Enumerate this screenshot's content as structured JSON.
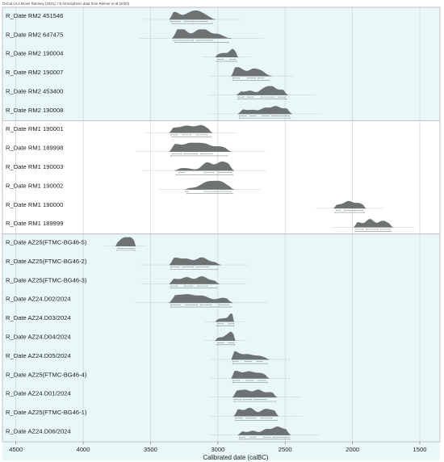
{
  "header": {
    "text": "OxCal v4.4 Bronk Ramsey (2021); r:5 Atmospheric data from Reimer et al (2020)"
  },
  "chart_data": {
    "type": "area",
    "title": "",
    "xlabel": "Calibrated date (calBC)",
    "ylabel": "",
    "xlim": [
      4600,
      1350
    ],
    "x_reversed": true,
    "xticks": [
      4500,
      4000,
      3500,
      3000,
      2500,
      2000,
      1500
    ],
    "grid": true,
    "groups": [
      {
        "name": "group-1",
        "from": 0,
        "to": 5,
        "fill": "#e9f7f8"
      },
      {
        "name": "group-2",
        "from": 6,
        "to": 11,
        "fill": "#ffffff"
      },
      {
        "name": "group-3",
        "from": 12,
        "to": 23,
        "fill": "#e9f7f8"
      }
    ],
    "series": [
      {
        "name": "R_Date RM2 451546",
        "range": [
          3360,
          3020
        ],
        "peaks": [
          [
            3320,
            0.9
          ],
          [
            3220,
            0.6
          ],
          [
            3160,
            0.85
          ],
          [
            3100,
            0.5
          ]
        ],
        "bands": [
          [
            3350,
            3280
          ],
          [
            3250,
            3180
          ],
          [
            3170,
            3080
          ],
          [
            3340,
            3040
          ]
        ]
      },
      {
        "name": "R_Date RM2 647475",
        "range": [
          3340,
          2900
        ],
        "peaks": [
          [
            3310,
            0.6
          ],
          [
            3260,
            1.0
          ],
          [
            3150,
            0.8
          ],
          [
            3090,
            0.85
          ],
          [
            3000,
            0.5
          ]
        ],
        "bands": [
          [
            3330,
            3280
          ],
          [
            3270,
            3180
          ],
          [
            3160,
            3040
          ],
          [
            3320,
            2920
          ]
        ]
      },
      {
        "name": "R_Date RM2 190004",
        "range": [
          3020,
          2850
        ],
        "peaks": [
          [
            2990,
            0.3
          ],
          [
            2950,
            0.4
          ],
          [
            2890,
            1.0
          ]
        ],
        "bands": [
          [
            3000,
            2960
          ],
          [
            2910,
            2870
          ],
          [
            3010,
            2860
          ]
        ]
      },
      {
        "name": "R_Date RM2 190007",
        "range": [
          2900,
          2600
        ],
        "peaks": [
          [
            2870,
            0.9
          ],
          [
            2820,
            0.6
          ],
          [
            2740,
            0.8
          ],
          [
            2680,
            0.6
          ]
        ],
        "bands": [
          [
            2890,
            2840
          ],
          [
            2780,
            2720
          ],
          [
            2700,
            2660
          ],
          [
            2890,
            2620
          ]
        ]
      },
      {
        "name": "R_Date RM2 453400",
        "range": [
          2860,
          2480
        ],
        "peaks": [
          [
            2840,
            0.4
          ],
          [
            2760,
            0.5
          ],
          [
            2660,
            0.7
          ],
          [
            2600,
            1.0
          ],
          [
            2520,
            0.6
          ]
        ],
        "bands": [
          [
            2850,
            2810
          ],
          [
            2780,
            2740
          ],
          [
            2680,
            2580
          ],
          [
            2550,
            2500
          ],
          [
            2850,
            2490
          ]
        ]
      },
      {
        "name": "R_Date RM2 190008",
        "range": [
          2850,
          2450
        ],
        "peaks": [
          [
            2820,
            0.5
          ],
          [
            2740,
            0.45
          ],
          [
            2650,
            0.7
          ],
          [
            2570,
            0.9
          ],
          [
            2490,
            0.6
          ]
        ],
        "bands": [
          [
            2840,
            2790
          ],
          [
            2760,
            2720
          ],
          [
            2670,
            2620
          ],
          [
            2600,
            2470
          ],
          [
            2840,
            2460
          ]
        ]
      },
      {
        "name": "R_Date RM1 190001",
        "range": [
          3360,
          3040
        ],
        "peaks": [
          [
            3330,
            0.55
          ],
          [
            3230,
            0.8
          ],
          [
            3120,
            0.9
          ]
        ],
        "bands": [
          [
            3350,
            3300
          ],
          [
            3260,
            3200
          ],
          [
            3160,
            3080
          ],
          [
            3340,
            3050
          ]
        ]
      },
      {
        "name": "R_Date RM1 189998",
        "range": [
          3360,
          2900
        ],
        "peaks": [
          [
            3320,
            0.9
          ],
          [
            3200,
            1.0
          ],
          [
            3100,
            0.9
          ],
          [
            2980,
            0.6
          ]
        ],
        "bands": [
          [
            3340,
            3270
          ],
          [
            3250,
            3150
          ],
          [
            3130,
            3040
          ],
          [
            3350,
            2930
          ]
        ]
      },
      {
        "name": "R_Date RM1 190003",
        "range": [
          3320,
          2880
        ],
        "peaks": [
          [
            3280,
            0.2
          ],
          [
            3220,
            0.2
          ],
          [
            3080,
            1.0
          ],
          [
            2980,
            0.9
          ],
          [
            2920,
            0.6
          ]
        ],
        "bands": [
          [
            3290,
            3250
          ],
          [
            3100,
            3030
          ],
          [
            3000,
            2900
          ],
          [
            3310,
            2890
          ]
        ]
      },
      {
        "name": "R_Date RM1 190002",
        "range": [
          3240,
          2880
        ],
        "peaks": [
          [
            3230,
            0.15
          ],
          [
            3080,
            0.85
          ],
          [
            2980,
            0.9
          ]
        ],
        "bands": [
          [
            3240,
            3220
          ],
          [
            3100,
            3020
          ],
          [
            3010,
            2900
          ],
          [
            3230,
            2890
          ]
        ]
      },
      {
        "name": "R_Date RM1 190000",
        "range": [
          2140,
          1900
        ],
        "peaks": [
          [
            2110,
            0.4
          ],
          [
            2030,
            0.85
          ],
          [
            1950,
            0.6
          ]
        ],
        "bands": [
          [
            2120,
            2090
          ],
          [
            2060,
            1980
          ],
          [
            1970,
            1920
          ],
          [
            2130,
            1910
          ]
        ]
      },
      {
        "name": "R_Date RM1 189999",
        "range": [
          1990,
          1700
        ],
        "peaks": [
          [
            1960,
            0.6
          ],
          [
            1870,
            1.0
          ],
          [
            1780,
            0.7
          ],
          [
            1730,
            0.3
          ]
        ],
        "bands": [
          [
            1980,
            1920
          ],
          [
            1900,
            1810
          ],
          [
            1790,
            1720
          ],
          [
            1980,
            1710
          ]
        ]
      },
      {
        "name": "R_Date AZ25(FTMC-BG46-5)",
        "range": [
          3760,
          3610
        ],
        "peaks": [
          [
            3710,
            0.8
          ],
          [
            3650,
            1.0
          ]
        ],
        "bands": [
          [
            3740,
            3620
          ],
          [
            3750,
            3615
          ]
        ]
      },
      {
        "name": "R_Date AZ25(FTMC-BG46-2)",
        "range": [
          3360,
          2980
        ],
        "peaks": [
          [
            3320,
            0.85
          ],
          [
            3230,
            0.7
          ],
          [
            3120,
            0.9
          ],
          [
            3030,
            0.3
          ]
        ],
        "bands": [
          [
            3350,
            3290
          ],
          [
            3260,
            3180
          ],
          [
            3160,
            3070
          ],
          [
            3350,
            3000
          ]
        ]
      },
      {
        "name": "R_Date AZ25(FTMC-BG46-3)",
        "range": [
          3360,
          2990
        ],
        "peaks": [
          [
            3330,
            0.6
          ],
          [
            3230,
            0.8
          ],
          [
            3120,
            0.9
          ],
          [
            3030,
            0.35
          ]
        ],
        "bands": [
          [
            3350,
            3300
          ],
          [
            3250,
            3190
          ],
          [
            3150,
            3080
          ],
          [
            3350,
            3010
          ]
        ]
      },
      {
        "name": "R_Date AZ24.D02/2024",
        "range": [
          3360,
          2890
        ],
        "peaks": [
          [
            3320,
            0.8
          ],
          [
            3220,
            0.9
          ],
          [
            3110,
            0.8
          ],
          [
            2960,
            0.6
          ]
        ],
        "bands": [
          [
            3350,
            3280
          ],
          [
            3240,
            3150
          ],
          [
            3130,
            3050
          ],
          [
            2990,
            2920
          ],
          [
            3350,
            2900
          ]
        ]
      },
      {
        "name": "R_Date AZ24.D03/2024",
        "range": [
          3020,
          2880
        ],
        "peaks": [
          [
            2990,
            0.3
          ],
          [
            2950,
            0.35
          ],
          [
            2900,
            1.0
          ]
        ],
        "bands": [
          [
            3000,
            2960
          ],
          [
            2920,
            2880
          ],
          [
            3010,
            2880
          ]
        ]
      },
      {
        "name": "R_Date AZ24.D04/2024",
        "range": [
          3020,
          2870
        ],
        "peaks": [
          [
            2990,
            0.35
          ],
          [
            2940,
            0.5
          ],
          [
            2900,
            1.0
          ]
        ],
        "bands": [
          [
            3000,
            2960
          ],
          [
            2920,
            2880
          ],
          [
            3010,
            2875
          ]
        ]
      },
      {
        "name": "R_Date AZ24.D05/2024",
        "range": [
          2900,
          2620
        ],
        "peaks": [
          [
            2880,
            1.0
          ],
          [
            2780,
            0.6
          ],
          [
            2690,
            0.4
          ]
        ],
        "bands": [
          [
            2890,
            2850
          ],
          [
            2800,
            2750
          ],
          [
            2710,
            2670
          ],
          [
            2890,
            2630
          ]
        ]
      },
      {
        "name": "R_Date AZ25(FTMC-BG46-4)",
        "range": [
          2900,
          2620
        ],
        "peaks": [
          [
            2870,
            0.9
          ],
          [
            2770,
            0.8
          ],
          [
            2680,
            0.6
          ]
        ],
        "bands": [
          [
            2890,
            2840
          ],
          [
            2790,
            2740
          ],
          [
            2700,
            2650
          ],
          [
            2890,
            2630
          ]
        ]
      },
      {
        "name": "R_Date AZ24.D01/2024",
        "range": [
          2890,
          2560
        ],
        "peaks": [
          [
            2860,
            0.7
          ],
          [
            2790,
            0.8
          ],
          [
            2700,
            0.9
          ],
          [
            2610,
            0.6
          ]
        ],
        "bands": [
          [
            2880,
            2830
          ],
          [
            2810,
            2750
          ],
          [
            2730,
            2640
          ],
          [
            2880,
            2570
          ]
        ]
      },
      {
        "name": "R_Date AZ25(FTMC-BG46-1)",
        "range": [
          2880,
          2550
        ],
        "peaks": [
          [
            2850,
            0.8
          ],
          [
            2760,
            1.0
          ],
          [
            2650,
            0.8
          ],
          [
            2580,
            0.6
          ]
        ],
        "bands": [
          [
            2870,
            2820
          ],
          [
            2790,
            2720
          ],
          [
            2680,
            2600
          ],
          [
            2870,
            2560
          ]
        ]
      },
      {
        "name": "R_Date AZ24.D06/2024",
        "range": [
          2850,
          2460
        ],
        "peaks": [
          [
            2830,
            0.45
          ],
          [
            2740,
            0.5
          ],
          [
            2640,
            0.7
          ],
          [
            2560,
            0.95
          ],
          [
            2490,
            0.6
          ]
        ],
        "bands": [
          [
            2840,
            2800
          ],
          [
            2760,
            2720
          ],
          [
            2660,
            2610
          ],
          [
            2590,
            2470
          ],
          [
            2840,
            2465
          ]
        ]
      }
    ]
  },
  "colors": {
    "fill": "#6d7273",
    "band": "#8a8f90",
    "frame": "#b5b5b5",
    "grid": "#c9d6d8",
    "prior": "#bfc4c5"
  }
}
